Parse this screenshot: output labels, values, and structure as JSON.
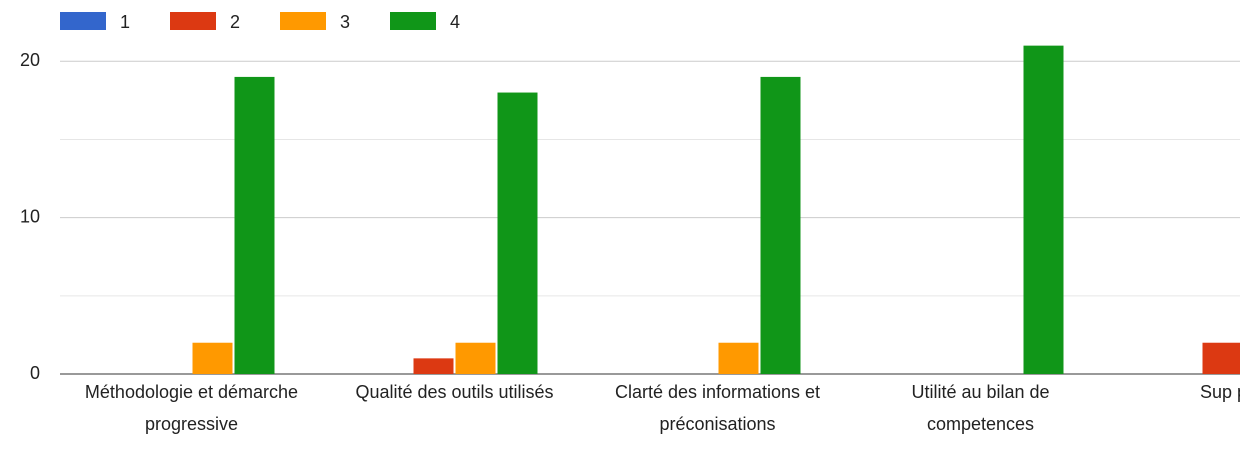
{
  "chart_data": {
    "type": "bar",
    "categories": [
      "Méthodologie et démarche progressive",
      "Qualité des outils utilisés",
      "Clarté des informations et préconisations",
      "Utilité au bilan de competences",
      "Sup pédag"
    ],
    "series": [
      {
        "name": "1",
        "color": "#3366cc",
        "values": [
          0,
          0,
          0,
          0,
          0
        ]
      },
      {
        "name": "2",
        "color": "#dc3912",
        "values": [
          0,
          1,
          0,
          0,
          2
        ]
      },
      {
        "name": "3",
        "color": "#ff9900",
        "values": [
          2,
          2,
          2,
          0,
          null
        ]
      },
      {
        "name": "4",
        "color": "#109618",
        "values": [
          19,
          18,
          19,
          21,
          null
        ]
      }
    ],
    "ylim": [
      0,
      22
    ],
    "yticks": [
      0,
      10,
      20
    ],
    "minor_yticks": [
      5,
      15
    ],
    "grid": true,
    "legend": "top"
  }
}
